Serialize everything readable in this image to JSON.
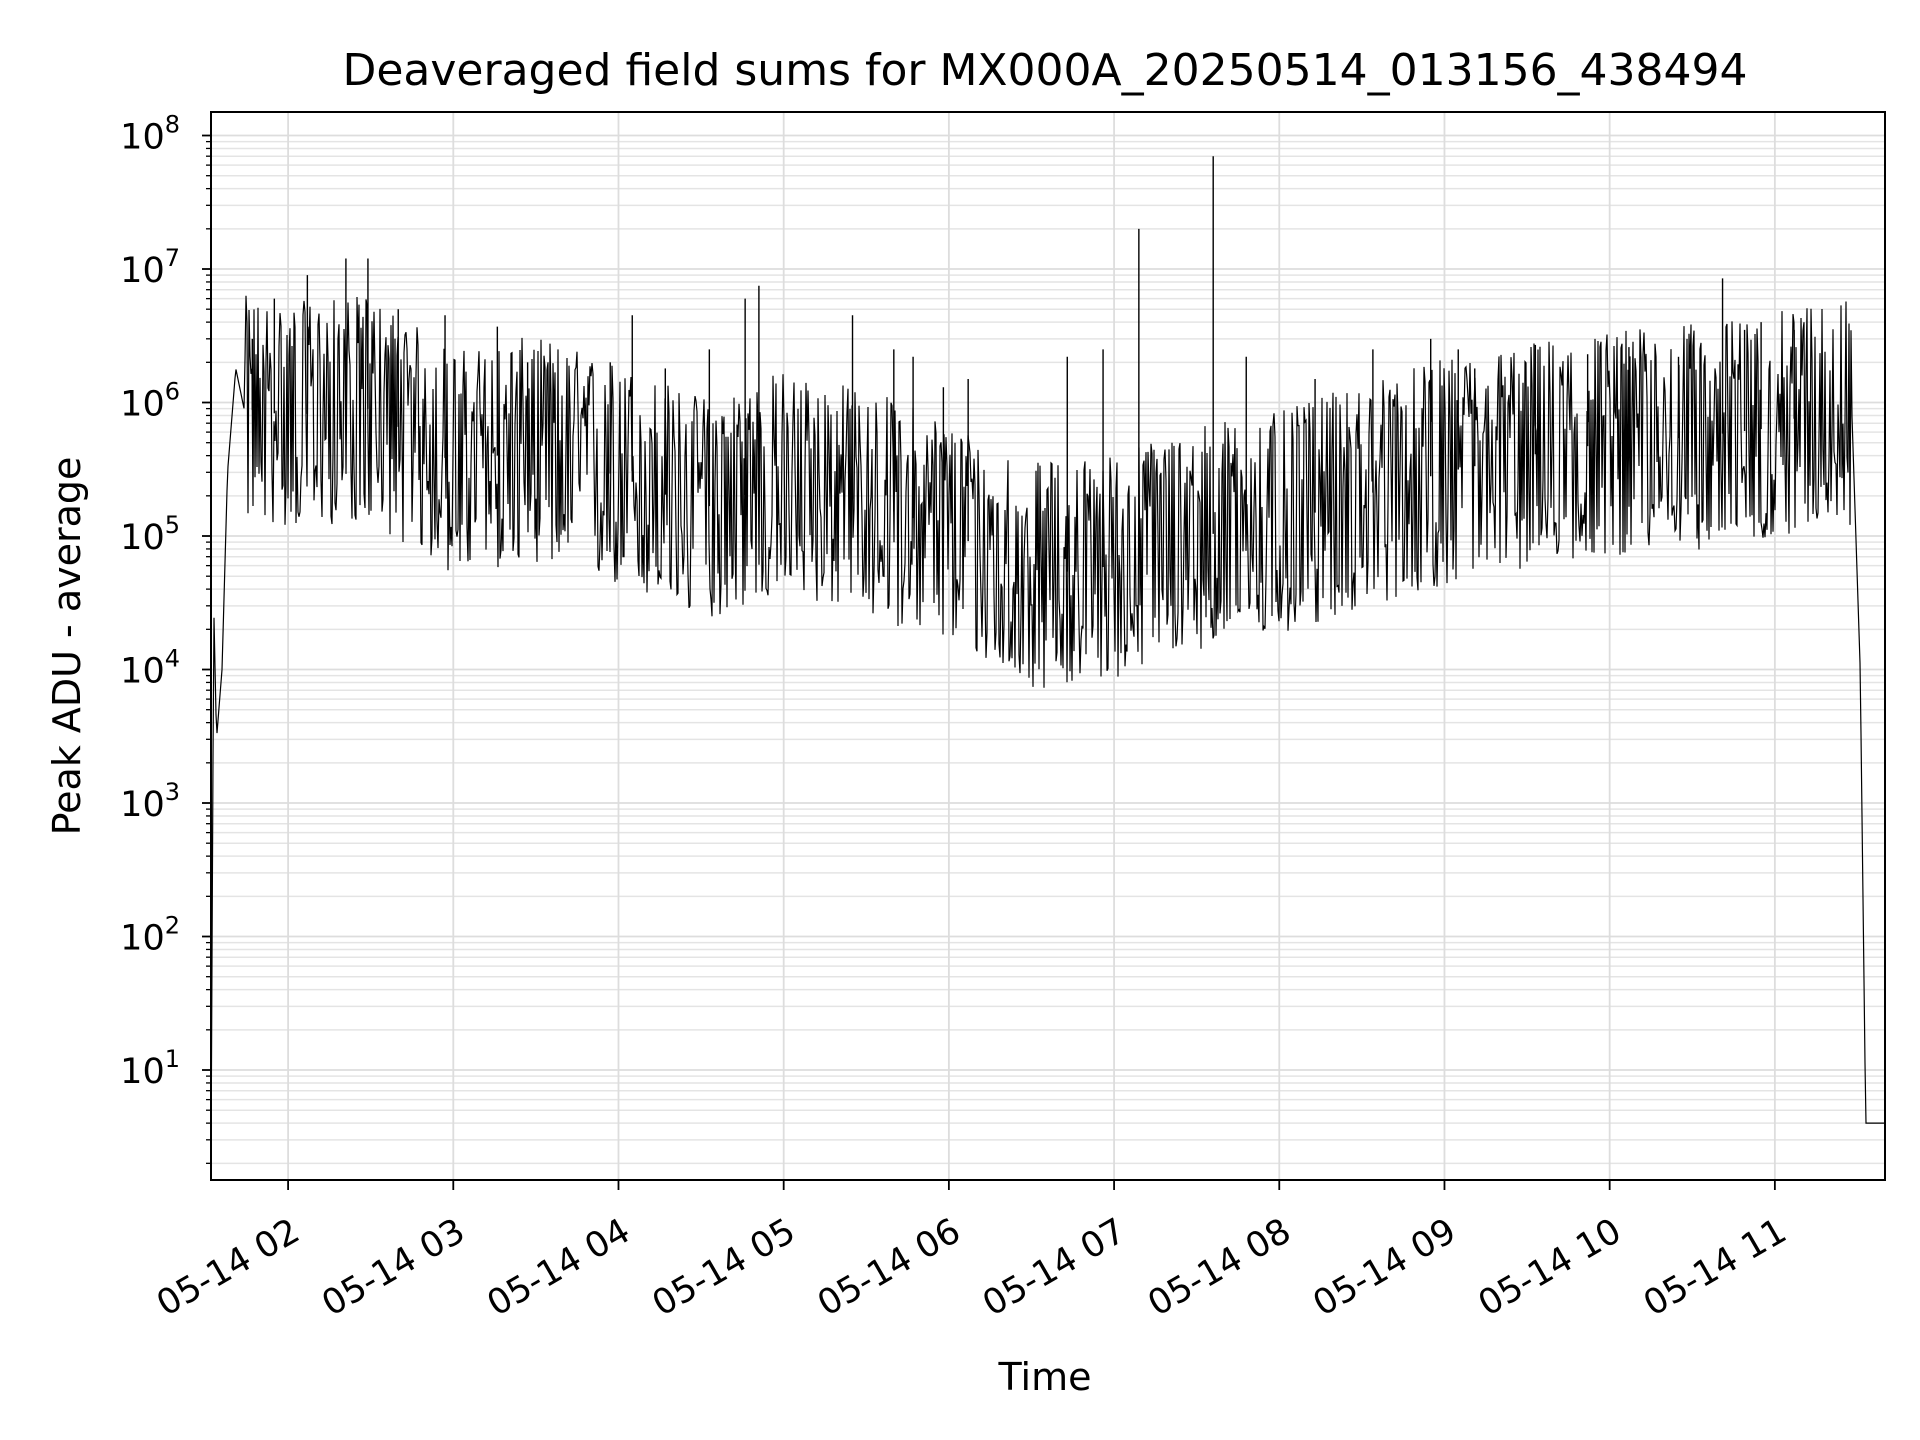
{
  "chart_data": {
    "type": "line",
    "title": "Deaveraged field sums for MX000A_20250514_013156_438494",
    "xlabel": "Time",
    "ylabel": "Peak ADU - average",
    "yscale": "log",
    "ylim": [
      1.5,
      150000000
    ],
    "xlim": [
      "2025-05-14T01:32:00",
      "2025-05-14T11:40:00"
    ],
    "grid": true,
    "legend": "none",
    "x_ticks": [
      {
        "t": "2025-05-14T02:00:00",
        "label": "05-14 02"
      },
      {
        "t": "2025-05-14T03:00:00",
        "label": "05-14 03"
      },
      {
        "t": "2025-05-14T04:00:00",
        "label": "05-14 04"
      },
      {
        "t": "2025-05-14T05:00:00",
        "label": "05-14 05"
      },
      {
        "t": "2025-05-14T06:00:00",
        "label": "05-14 06"
      },
      {
        "t": "2025-05-14T07:00:00",
        "label": "05-14 07"
      },
      {
        "t": "2025-05-14T08:00:00",
        "label": "05-14 08"
      },
      {
        "t": "2025-05-14T09:00:00",
        "label": "05-14 09"
      },
      {
        "t": "2025-05-14T10:00:00",
        "label": "05-14 10"
      },
      {
        "t": "2025-05-14T11:00:00",
        "label": "05-14 11"
      }
    ],
    "y_ticks": [
      {
        "value": 10,
        "base": "10",
        "exp": "1"
      },
      {
        "value": 100,
        "base": "10",
        "exp": "2"
      },
      {
        "value": 1000,
        "base": "10",
        "exp": "3"
      },
      {
        "value": 10000,
        "base": "10",
        "exp": "4"
      },
      {
        "value": 100000,
        "base": "10",
        "exp": "5"
      },
      {
        "value": 1000000,
        "base": "10",
        "exp": "6"
      },
      {
        "value": 10000000,
        "base": "10",
        "exp": "7"
      },
      {
        "value": 100000000,
        "base": "10",
        "exp": "8"
      }
    ],
    "series": [
      {
        "color": "#000000",
        "trend": [
          [
            "2025-05-14T01:32:00",
            2
          ],
          [
            "2025-05-14T01:33:00",
            30000
          ],
          [
            "2025-05-14T01:34:00",
            3000
          ],
          [
            "2025-05-14T01:36:00",
            10000
          ],
          [
            "2025-05-14T01:38:00",
            300000
          ],
          [
            "2025-05-14T01:41:00",
            1800000
          ],
          [
            "2025-05-14T01:44:00",
            900000
          ],
          [
            "2025-05-14T02:00:00",
            800000
          ],
          [
            "2025-05-14T02:30:00",
            900000
          ],
          [
            "2025-05-14T03:00:00",
            350000
          ],
          [
            "2025-05-14T03:30:00",
            450000
          ],
          [
            "2025-05-14T04:00:00",
            280000
          ],
          [
            "2025-05-14T04:30:00",
            160000
          ],
          [
            "2025-05-14T05:00:00",
            250000
          ],
          [
            "2025-05-14T05:30:00",
            180000
          ],
          [
            "2025-05-14T06:00:00",
            110000
          ],
          [
            "2025-05-14T06:30:00",
            50000
          ],
          [
            "2025-05-14T07:00:00",
            60000
          ],
          [
            "2025-05-14T07:30:00",
            100000
          ],
          [
            "2025-05-14T08:00:00",
            120000
          ],
          [
            "2025-05-14T08:30:00",
            200000
          ],
          [
            "2025-05-14T09:00:00",
            300000
          ],
          [
            "2025-05-14T09:30:00",
            400000
          ],
          [
            "2025-05-14T10:00:00",
            500000
          ],
          [
            "2025-05-14T10:30:00",
            550000
          ],
          [
            "2025-05-14T11:00:00",
            650000
          ],
          [
            "2025-05-14T11:20:00",
            1000000
          ],
          [
            "2025-05-14T11:28:00",
            800000
          ],
          [
            "2025-05-14T11:31:00",
            10000
          ],
          [
            "2025-05-14T11:33:00",
            4
          ],
          [
            "2025-05-14T11:40:00",
            4
          ]
        ],
        "spikes": [
          [
            "2025-05-14T01:47:00",
            3000000
          ],
          [
            "2025-05-14T01:55:00",
            6000000
          ],
          [
            "2025-05-14T02:07:00",
            9000000
          ],
          [
            "2025-05-14T02:21:00",
            12000000
          ],
          [
            "2025-05-14T02:29:00",
            12000000
          ],
          [
            "2025-05-14T02:40:00",
            5000000
          ],
          [
            "2025-05-14T02:57:00",
            4500000
          ],
          [
            "2025-05-14T03:16:00",
            3700000
          ],
          [
            "2025-05-14T03:27:00",
            2000000
          ],
          [
            "2025-05-14T03:57:00",
            2000000
          ],
          [
            "2025-05-14T04:05:00",
            4500000
          ],
          [
            "2025-05-14T04:17:00",
            1800000
          ],
          [
            "2025-05-14T04:33:00",
            2500000
          ],
          [
            "2025-05-14T04:46:00",
            6000000
          ],
          [
            "2025-05-14T04:51:00",
            7500000
          ],
          [
            "2025-05-14T05:25:00",
            4500000
          ],
          [
            "2025-05-14T05:40:00",
            2500000
          ],
          [
            "2025-05-14T05:47:00",
            2200000
          ],
          [
            "2025-05-14T05:58:00",
            1300000
          ],
          [
            "2025-05-14T06:07:00",
            1500000
          ],
          [
            "2025-05-14T06:43:00",
            2200000
          ],
          [
            "2025-05-14T06:56:00",
            2500000
          ],
          [
            "2025-05-14T07:09:00",
            20000000
          ],
          [
            "2025-05-14T07:36:00",
            70000000
          ],
          [
            "2025-05-14T07:48:00",
            2200000
          ],
          [
            "2025-05-14T08:13:00",
            1500000
          ],
          [
            "2025-05-14T08:34:00",
            2500000
          ],
          [
            "2025-05-14T08:55:00",
            3000000
          ],
          [
            "2025-05-14T09:05:00",
            2500000
          ],
          [
            "2025-05-14T09:11:00",
            1800000
          ],
          [
            "2025-05-14T09:33:00",
            2700000
          ],
          [
            "2025-05-14T09:52:00",
            2300000
          ],
          [
            "2025-05-14T10:07:00",
            2600000
          ],
          [
            "2025-05-14T10:25:00",
            2200000
          ],
          [
            "2025-05-14T10:41:00",
            8500000
          ],
          [
            "2025-05-14T10:49:00",
            3500000
          ],
          [
            "2025-05-14T10:55:00",
            4000000
          ],
          [
            "2025-05-14T11:07:00",
            3500000
          ]
        ]
      }
    ]
  }
}
